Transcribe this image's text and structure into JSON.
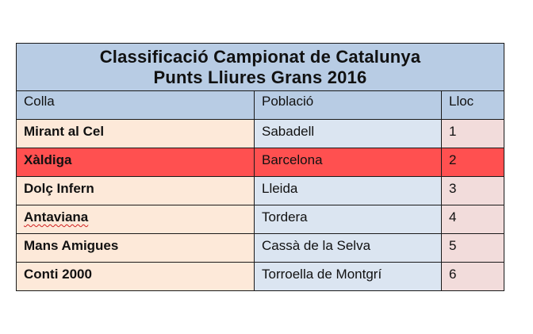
{
  "title": {
    "line1": "Classificació Campionat de Catalunya",
    "line2": "Punts Lliures Grans 2016"
  },
  "headers": {
    "colla": "Colla",
    "poblacio": "Població",
    "lloc": "Lloc"
  },
  "rows": [
    {
      "colla": "Mirant al Cel",
      "poblacio": "Sabadell",
      "lloc": "1"
    },
    {
      "colla": "Xàldiga",
      "poblacio": "Barcelona",
      "lloc": "2"
    },
    {
      "colla": "Dolç Infern",
      "poblacio": "Lleida",
      "lloc": "3"
    },
    {
      "colla": "Antaviana",
      "poblacio": "Tordera",
      "lloc": "4"
    },
    {
      "colla": "Mans Amigues",
      "poblacio": "Cassà de la Selva",
      "lloc": "5"
    },
    {
      "colla": "Conti 2000",
      "poblacio": "Torroella de Montgrí",
      "lloc": "6"
    }
  ],
  "colors": {
    "title_bg": "#b8cce4",
    "col1_bg": "#fde9d9",
    "col2_bg": "#dbe5f1",
    "col3_bg": "#f2dcdb",
    "highlight_bg": "#ff5050"
  }
}
